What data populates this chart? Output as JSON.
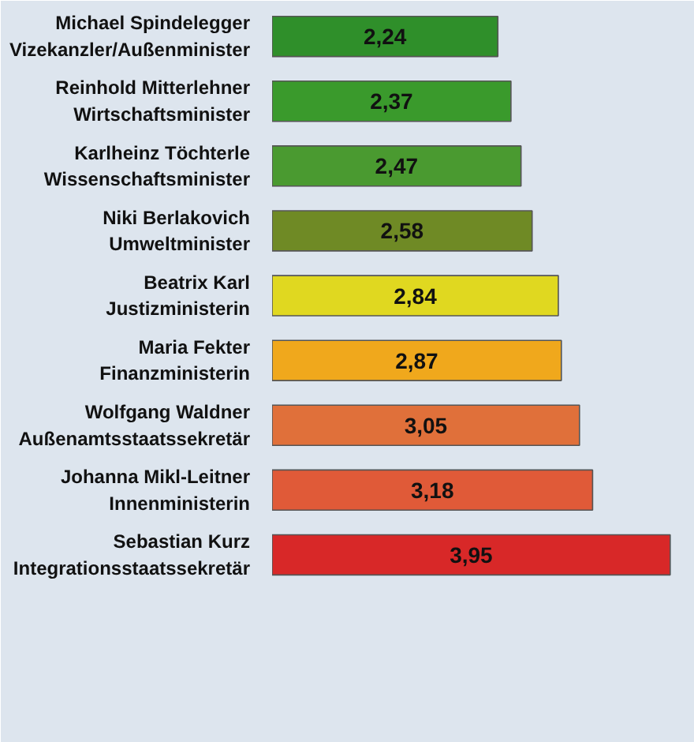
{
  "chart_data": {
    "type": "bar",
    "orientation": "horizontal",
    "categories": [
      "Michael Spindelegger\nVizekanzler/Außenminister",
      "Reinhold Mitterlehner\nWirtschaftsminister",
      "Karlheinz Töchterle\nWissenschaftsminister",
      "Niki Berlakovich\nUmweltminister",
      "Beatrix Karl\nJustizministerin",
      "Maria Fekter\nFinanzministerin",
      "Wolfgang Waldner\nAußenamtsstaatssekretär",
      "Johanna Mikl-Leitner\nInnenministerin",
      "Sebastian Kurz\nIntegrationsstaatssekretär"
    ],
    "values": [
      2.24,
      2.37,
      2.47,
      2.58,
      2.84,
      2.87,
      3.05,
      3.18,
      3.95
    ],
    "value_labels": [
      "2,24",
      "2,37",
      "2,47",
      "2,58",
      "2,84",
      "2,87",
      "3,05",
      "3,18",
      "3,95"
    ],
    "colors": [
      "#2f8f2a",
      "#3a9a2c",
      "#4a9a30",
      "#6f8a25",
      "#e0d820",
      "#f0a81c",
      "#e0703a",
      "#e05a38",
      "#d82828"
    ]
  }
}
